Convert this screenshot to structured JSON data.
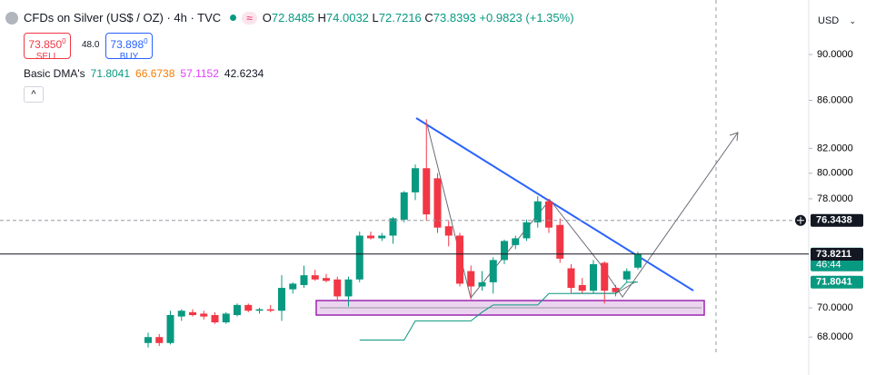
{
  "chart_data": {
    "type": "candlestick",
    "title": "CFDs on Silver (US$ / OZ) · 4h · TVC",
    "badge": "≈",
    "readout": {
      "labels": [
        "O",
        "H",
        "L",
        "C"
      ],
      "change": "+0.9823",
      "change_pct": "(+1.35%)"
    },
    "sell": {
      "price": "73.850",
      "pip": "0",
      "label": "SELL",
      "color": "#f23645"
    },
    "spread": "48.0",
    "buy": {
      "price": "73.898",
      "pip": "0",
      "label": "BUY",
      "color": "#2962ff"
    },
    "indicator": {
      "name": "Basic DMA's",
      "values": [
        {
          "value": 71.8041,
          "color": "#089981"
        },
        {
          "value": 66.6738,
          "color": "#f57c00"
        },
        {
          "value": 57.1152,
          "color": "#e040fb"
        },
        {
          "value": 42.6234,
          "color": "#131722"
        }
      ]
    },
    "collapse": "^",
    "currency": "USD",
    "log_scale": true,
    "ylim": [
      66.86,
      95.0
    ],
    "yticks": [
      {
        "value": 68,
        "label": "68.0000"
      },
      {
        "value": 70,
        "label": "70.0000"
      },
      {
        "value": 78,
        "label": "78.0000"
      },
      {
        "value": 80,
        "label": "80.0000"
      },
      {
        "value": 82,
        "label": "82.0000"
      },
      {
        "value": 86,
        "label": "86.0000"
      },
      {
        "value": 90,
        "label": "90.0000"
      }
    ],
    "up_color": "#089981",
    "down_color": "#f23645",
    "open": [
      67.6,
      68.0,
      67.6,
      69.4,
      69.7,
      69.6,
      69.5,
      69.0,
      69.5,
      70.2,
      69.8,
      69.9,
      69.8,
      71.3,
      71.6,
      72.3,
      72.1,
      72.0,
      70.8,
      72.0,
      75.2,
      75.0,
      75.2,
      76.4,
      78.5,
      80.4,
      79.6,
      75.9,
      75.2,
      72.6,
      71.5,
      71.8,
      73.4,
      74.5,
      75.0,
      76.2,
      77.8,
      76.0,
      72.8,
      71.6,
      71.2,
      73.2,
      71.4,
      72.0,
      72.8485
    ],
    "high": [
      68.3,
      68.2,
      69.8,
      69.9,
      69.9,
      69.8,
      69.7,
      69.7,
      70.3,
      70.3,
      70.0,
      70.2,
      72.3,
      71.8,
      73.0,
      72.7,
      72.4,
      72.2,
      72.2,
      75.5,
      75.5,
      75.4,
      76.6,
      78.6,
      80.7,
      84.4,
      80.0,
      76.3,
      75.4,
      73.0,
      72.6,
      73.6,
      74.9,
      75.2,
      76.4,
      78.2,
      78.0,
      76.5,
      73.1,
      72.1,
      73.4,
      73.3,
      71.6,
      72.8,
      74.0032
    ],
    "low": [
      67.3,
      67.4,
      67.5,
      69.1,
      69.4,
      69.2,
      68.9,
      68.9,
      69.4,
      69.7,
      69.6,
      69.7,
      69.1,
      71.0,
      71.4,
      71.9,
      71.8,
      70.5,
      70.1,
      71.8,
      74.9,
      74.8,
      74.6,
      76.2,
      77.9,
      76.3,
      75.4,
      74.4,
      71.5,
      70.6,
      71.2,
      71.0,
      73.1,
      74.2,
      74.8,
      75.8,
      75.4,
      73.2,
      71.0,
      71.0,
      71.0,
      70.3,
      70.8,
      71.8,
      72.7216
    ],
    "close": [
      68.0,
      67.6,
      69.5,
      69.8,
      69.5,
      69.4,
      69.0,
      69.6,
      70.2,
      69.8,
      69.9,
      69.8,
      71.4,
      71.7,
      72.3,
      72.0,
      71.9,
      70.8,
      72.0,
      75.2,
      75.0,
      75.2,
      76.5,
      78.5,
      80.4,
      76.8,
      75.8,
      75.2,
      71.7,
      71.5,
      71.8,
      73.4,
      74.8,
      75.0,
      76.2,
      77.8,
      75.8,
      73.5,
      71.4,
      71.2,
      73.1,
      71.2,
      71.1,
      72.6,
      73.8393
    ],
    "dma_line": {
      "color": "#089981",
      "values": [
        null,
        null,
        null,
        null,
        null,
        null,
        null,
        null,
        null,
        null,
        null,
        null,
        null,
        null,
        null,
        null,
        null,
        null,
        null,
        67.8,
        67.8,
        67.8,
        67.8,
        67.8,
        69.1,
        69.1,
        69.1,
        69.1,
        69.1,
        69.1,
        69.7,
        70.2,
        70.2,
        70.2,
        70.2,
        70.2,
        71.0,
        71.0,
        71.0,
        71.0,
        71.0,
        71.0,
        71.0,
        71.8,
        71.8041
      ]
    },
    "price_tags": [
      {
        "value": 76.3438,
        "color": "#131722",
        "line": "dashed"
      },
      {
        "value": 73.8393,
        "color": "#089981",
        "sub": "46:44",
        "line": "solid"
      },
      {
        "value": 73.8211,
        "color": "#131722"
      },
      {
        "value": 71.8041,
        "color": "#089981"
      }
    ]
  }
}
